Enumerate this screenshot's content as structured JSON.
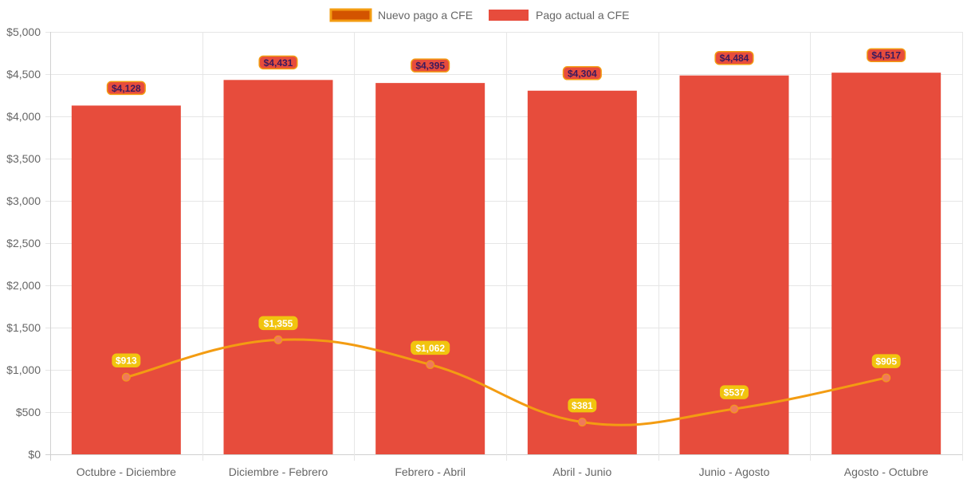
{
  "chart_data": {
    "type": "bar",
    "title": "",
    "xlabel": "",
    "ylabel": "",
    "ylim": [
      0,
      5000
    ],
    "y_ticks": [
      "$0",
      "$500",
      "$1,000",
      "$1,500",
      "$2,000",
      "$2,500",
      "$3,000",
      "$3,500",
      "$4,000",
      "$4,500",
      "$5,000"
    ],
    "y_tick_values": [
      0,
      500,
      1000,
      1500,
      2000,
      2500,
      3000,
      3500,
      4000,
      4500,
      5000
    ],
    "grid": true,
    "legend_position": "top-center",
    "categories": [
      "Octubre - Diciembre",
      "Diciembre - Febrero",
      "Febrero - Abril",
      "Abril - Junio",
      "Junio - Agosto",
      "Agosto - Octubre"
    ],
    "series": [
      {
        "name": "Nuevo pago a CFE",
        "type": "line",
        "color": "#f39c12",
        "legend_fill": "#d35400",
        "point_color": "#f0795b",
        "label_bg": "#f1c40f",
        "values": [
          913,
          1355,
          1062,
          381,
          537,
          905
        ],
        "labels": [
          "$913",
          "$1,355",
          "$1,062",
          "$381",
          "$537",
          "$905"
        ]
      },
      {
        "name": "Pago actual a CFE",
        "type": "bar",
        "color": "#e74c3c",
        "label_bg": "#e74c3c",
        "label_border": "#f39c12",
        "values": [
          4128,
          4431,
          4395,
          4304,
          4484,
          4517
        ],
        "labels": [
          "$4,128",
          "$4,431",
          "$4,395",
          "$4,304",
          "$4,484",
          "$4,517"
        ]
      }
    ]
  }
}
